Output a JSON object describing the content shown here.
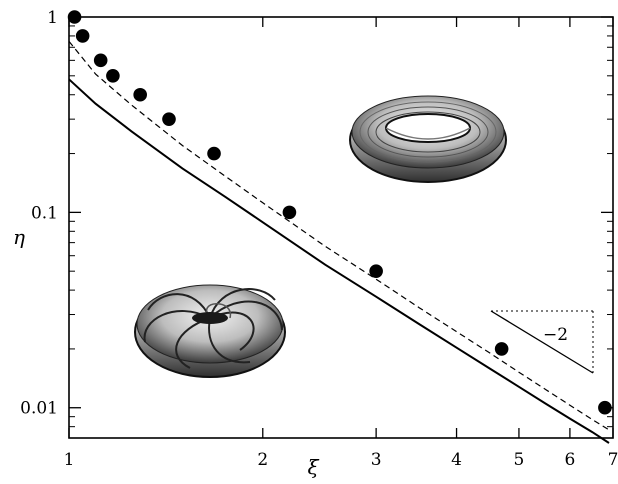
{
  "chart_data": {
    "type": "line",
    "xlabel": "ξ",
    "ylabel": "η",
    "xscale": "log",
    "yscale": "log",
    "xlim": [
      1,
      7
    ],
    "ylim": [
      0.007,
      1
    ],
    "x_ticks": [
      {
        "value": 1,
        "label": "1"
      },
      {
        "value": 2,
        "label": "2"
      },
      {
        "value": 3,
        "label": "3"
      },
      {
        "value": 4,
        "label": "4"
      },
      {
        "value": 5,
        "label": "5"
      },
      {
        "value": 6,
        "label": "6"
      },
      {
        "value": 7,
        "label": "7"
      }
    ],
    "y_ticks": [
      {
        "value": 1,
        "label": "1"
      },
      {
        "value": 0.1,
        "label": "0.1"
      },
      {
        "value": 0.01,
        "label": "0.01"
      }
    ],
    "grid": false,
    "series": [
      {
        "style": "solid",
        "color": "#000000",
        "x": [
          1.0,
          1.1,
          1.25,
          1.5,
          1.75,
          2.0,
          2.5,
          3.0,
          3.5,
          4.0,
          4.5,
          5.0,
          5.5,
          6.0,
          6.5,
          6.9
        ],
        "y": [
          0.48,
          0.36,
          0.26,
          0.168,
          0.12,
          0.089,
          0.054,
          0.037,
          0.0268,
          0.0203,
          0.0159,
          0.0128,
          0.0105,
          0.0088,
          0.0075,
          0.0066
        ]
      },
      {
        "style": "dashed",
        "color": "#000000",
        "x": [
          1.0,
          1.1,
          1.25,
          1.5,
          1.75,
          2.0,
          2.5,
          3.0,
          3.5,
          4.0,
          4.5,
          5.0,
          5.5,
          6.0,
          6.5,
          6.9
        ],
        "y": [
          0.75,
          0.51,
          0.355,
          0.22,
          0.153,
          0.112,
          0.067,
          0.0455,
          0.0325,
          0.0245,
          0.0191,
          0.0152,
          0.0124,
          0.0103,
          0.0087,
          0.0077
        ]
      },
      {
        "style": "markers",
        "color": "#000000",
        "x": [
          1.02,
          1.05,
          1.12,
          1.17,
          1.29,
          1.43,
          1.68,
          2.2,
          3.0,
          4.7,
          6.8
        ],
        "y": [
          1.0,
          0.8,
          0.6,
          0.5,
          0.4,
          0.3,
          0.2,
          0.1,
          0.05,
          0.02,
          0.01
        ]
      }
    ],
    "annotations": [
      {
        "type": "slope-triangle",
        "label": "−2"
      },
      {
        "type": "inset-image",
        "icon": "torus-smooth-icon"
      },
      {
        "type": "inset-image",
        "icon": "torus-twisted-icon"
      }
    ]
  }
}
